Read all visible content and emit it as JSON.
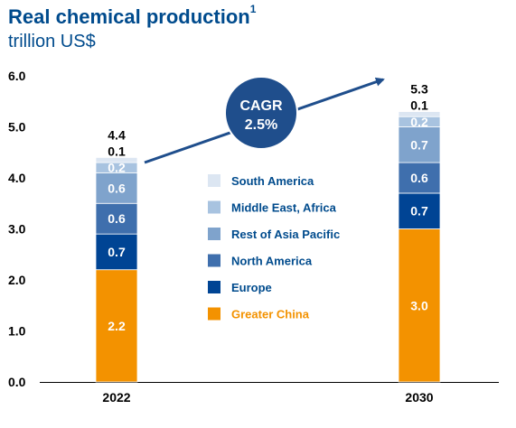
{
  "title": "Real chemical production",
  "title_footnote": "1",
  "subtitle": "trillion US$",
  "cagr": {
    "label": "CAGR",
    "value": "2.5%"
  },
  "colors": {
    "South America": "#dce6f2",
    "Middle East, Africa": "#a8c3e0",
    "Rest of Asia Pacific": "#7fa3cc",
    "North America": "#3f6fad",
    "Europe": "#004494",
    "Greater China": "#f39200",
    "axis": "#000000",
    "title": "#004b8d",
    "arrow": "#1f4e8c",
    "cagr_circle": "#1f4e8c"
  },
  "chart_data": {
    "type": "bar",
    "stacked": true,
    "categories": [
      "2022",
      "2030"
    ],
    "series": [
      {
        "name": "Greater China",
        "values": [
          2.2,
          3.0
        ],
        "labels": [
          "2.2",
          "3.0"
        ]
      },
      {
        "name": "Europe",
        "values": [
          0.7,
          0.7
        ],
        "labels": [
          "0.7",
          "0.7"
        ]
      },
      {
        "name": "North America",
        "values": [
          0.6,
          0.6
        ],
        "labels": [
          "0.6",
          "0.6"
        ]
      },
      {
        "name": "Rest of Asia Pacific",
        "values": [
          0.6,
          0.7
        ],
        "labels": [
          "0.6",
          "0.7"
        ]
      },
      {
        "name": "Middle East, Africa",
        "values": [
          0.2,
          0.2
        ],
        "labels": [
          "0.2",
          "0.2"
        ]
      },
      {
        "name": "South America",
        "values": [
          0.1,
          0.1
        ],
        "labels": [
          "0.1",
          "0.1"
        ]
      }
    ],
    "totals": [
      "4.4",
      "5.3"
    ],
    "ylim": [
      0,
      6
    ],
    "yticks": [
      "0.0",
      "1.0",
      "2.0",
      "3.0",
      "4.0",
      "5.0",
      "6.0"
    ],
    "legend_order": [
      "South America",
      "Middle East, Africa",
      "Rest of Asia Pacific",
      "North America",
      "Europe",
      "Greater China"
    ],
    "legend_position": "center",
    "grid": false
  }
}
